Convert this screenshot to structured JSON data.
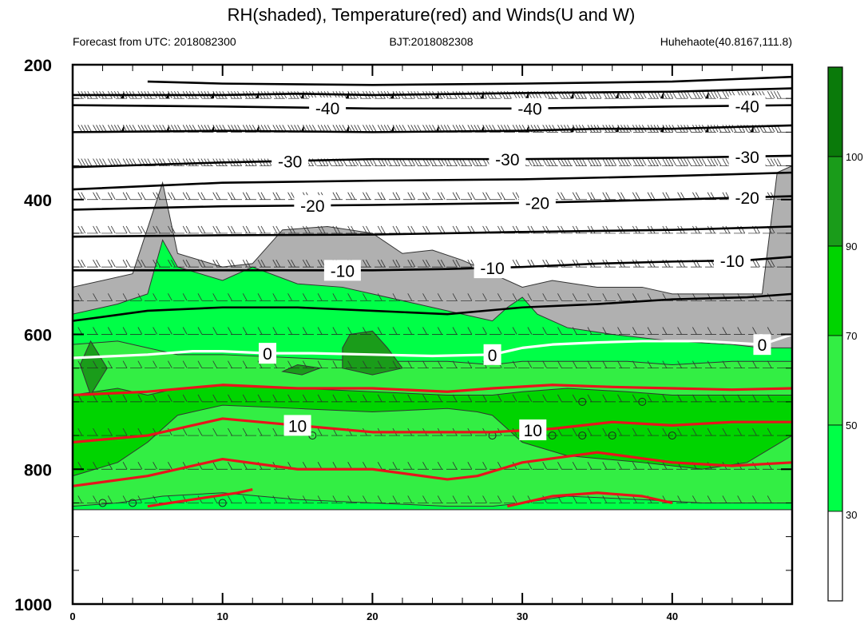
{
  "chart_data": {
    "type": "contour",
    "title": "RH(shaded), Temperature(red) and Winds(U and W)",
    "subtitle_left": "Forecast from UTC: 2018082300",
    "subtitle_center": "BJT:2018082308",
    "subtitle_right": "Huhehaote(40.8167,111.8)",
    "x_ticks": [
      0,
      10,
      20,
      30,
      40
    ],
    "xlim": [
      0,
      48
    ],
    "y_ticks": [
      200,
      400,
      600,
      800,
      1000
    ],
    "ylim": [
      200,
      1000
    ],
    "y_inverted": true,
    "wind_levels": [
      250,
      300,
      350,
      400,
      450,
      500,
      550,
      600,
      650,
      700,
      750,
      800,
      850
    ],
    "rh_colorbar": {
      "levels": [
        30,
        50,
        70,
        90,
        100
      ],
      "labels": [
        "30",
        "50",
        "70",
        "90",
        "100"
      ],
      "colors": [
        "#ffffff",
        "#b0b0b0",
        "#00ff47",
        "#33ee44",
        "#00d400",
        "#1a9c1a",
        "#0a7a0a"
      ]
    },
    "rh_regions": [
      {
        "name": "rh-30-50",
        "color": "#b0b0b0",
        "lower": [
          [
            0,
            860
          ],
          [
            48,
            860
          ]
        ],
        "upper": [
          [
            0,
            530
          ],
          [
            4,
            510
          ],
          [
            6,
            375
          ],
          [
            7,
            480
          ],
          [
            10,
            500
          ],
          [
            12,
            495
          ],
          [
            14,
            445
          ],
          [
            17,
            440
          ],
          [
            20,
            450
          ],
          [
            22,
            480
          ],
          [
            24,
            475
          ],
          [
            26,
            490
          ],
          [
            28,
            510
          ],
          [
            30,
            530
          ],
          [
            32,
            520
          ],
          [
            35,
            530
          ],
          [
            38,
            530
          ],
          [
            40,
            540
          ],
          [
            43,
            540
          ],
          [
            46,
            540
          ],
          [
            47,
            360
          ],
          [
            48,
            350
          ]
        ]
      },
      {
        "name": "rh-50-70",
        "color": "#00ff47",
        "lower": [
          [
            0,
            860
          ],
          [
            48,
            860
          ]
        ],
        "upper": [
          [
            0,
            570
          ],
          [
            3,
            555
          ],
          [
            5,
            540
          ],
          [
            6,
            460
          ],
          [
            7,
            500
          ],
          [
            10,
            520
          ],
          [
            12,
            500
          ],
          [
            15,
            525
          ],
          [
            18,
            530
          ],
          [
            20,
            540
          ],
          [
            23,
            555
          ],
          [
            25,
            565
          ],
          [
            28,
            580
          ],
          [
            29,
            560
          ],
          [
            30,
            545
          ],
          [
            31,
            570
          ],
          [
            33,
            590
          ],
          [
            36,
            600
          ],
          [
            40,
            610
          ],
          [
            44,
            615
          ],
          [
            46,
            620
          ],
          [
            48,
            620
          ]
        ]
      },
      {
        "name": "rh-70-90",
        "color": "#33ee44",
        "lower": [
          [
            0,
            855
          ],
          [
            3,
            850
          ],
          [
            6,
            840
          ],
          [
            10,
            835
          ],
          [
            15,
            845
          ],
          [
            20,
            850
          ],
          [
            25,
            855
          ],
          [
            28,
            855
          ],
          [
            30,
            850
          ],
          [
            33,
            840
          ],
          [
            38,
            845
          ],
          [
            42,
            850
          ],
          [
            48,
            850
          ]
        ],
        "upper": [
          [
            0,
            615
          ],
          [
            3,
            610
          ],
          [
            5,
            620
          ],
          [
            7,
            630
          ],
          [
            10,
            630
          ],
          [
            15,
            635
          ],
          [
            20,
            640
          ],
          [
            25,
            640
          ],
          [
            28,
            645
          ],
          [
            30,
            640
          ],
          [
            33,
            640
          ],
          [
            37,
            640
          ],
          [
            40,
            645
          ],
          [
            44,
            640
          ],
          [
            48,
            640
          ]
        ]
      },
      {
        "name": "rh-90-100",
        "color": "#00d400",
        "lower": [
          [
            0,
            810
          ],
          [
            3,
            790
          ],
          [
            5,
            760
          ],
          [
            7,
            720
          ],
          [
            10,
            705
          ],
          [
            15,
            710
          ],
          [
            20,
            715
          ],
          [
            25,
            710
          ],
          [
            27,
            715
          ],
          [
            28,
            720
          ],
          [
            30,
            760
          ],
          [
            33,
            780
          ],
          [
            38,
            790
          ],
          [
            42,
            800
          ],
          [
            45,
            790
          ],
          [
            48,
            750
          ]
        ],
        "upper": [
          [
            0,
            690
          ],
          [
            3,
            680
          ],
          [
            5,
            690
          ],
          [
            7,
            680
          ],
          [
            10,
            675
          ],
          [
            15,
            680
          ],
          [
            20,
            685
          ],
          [
            25,
            690
          ],
          [
            28,
            690
          ],
          [
            30,
            685
          ],
          [
            33,
            680
          ],
          [
            37,
            685
          ],
          [
            40,
            690
          ],
          [
            44,
            690
          ],
          [
            48,
            690
          ]
        ]
      }
    ],
    "rh_patches": [
      [
        [
          0.5,
          645
        ],
        [
          1.2,
          610
        ],
        [
          2.3,
          650
        ],
        [
          1.2,
          690
        ]
      ],
      [
        [
          18.5,
          600
        ],
        [
          20,
          595
        ],
        [
          21,
          620
        ],
        [
          22,
          650
        ],
        [
          20,
          660
        ],
        [
          18,
          650
        ],
        [
          18,
          620
        ]
      ],
      [
        [
          15,
          645
        ],
        [
          16.5,
          650
        ],
        [
          15.3,
          660
        ],
        [
          14,
          655
        ]
      ]
    ],
    "temperature_contours": [
      {
        "level": 0,
        "color": "#ffffff",
        "label": "0",
        "label_x": [
          13,
          28,
          46
        ],
        "points": [
          [
            0,
            635
          ],
          [
            5,
            630
          ],
          [
            8,
            625
          ],
          [
            10,
            625
          ],
          [
            13,
            628
          ],
          [
            16,
            628
          ],
          [
            20,
            630
          ],
          [
            24,
            632
          ],
          [
            28,
            630
          ],
          [
            30,
            620
          ],
          [
            32,
            615
          ],
          [
            35,
            612
          ],
          [
            38,
            610
          ],
          [
            42,
            610
          ],
          [
            46,
            615
          ],
          [
            48,
            600
          ]
        ]
      },
      {
        "level": 5,
        "color": "#e8141c",
        "label": "",
        "label_x": [],
        "points": [
          [
            0,
            690
          ],
          [
            5,
            685
          ],
          [
            10,
            675
          ],
          [
            15,
            680
          ],
          [
            20,
            680
          ],
          [
            25,
            685
          ],
          [
            28,
            680
          ],
          [
            32,
            675
          ],
          [
            36,
            678
          ],
          [
            40,
            680
          ],
          [
            44,
            682
          ],
          [
            48,
            680
          ]
        ]
      },
      {
        "level": 10,
        "color": "#e8141c",
        "label": "10",
        "label_x": [
          15,
          30.7
        ],
        "points": [
          [
            0,
            760
          ],
          [
            5,
            750
          ],
          [
            10,
            725
          ],
          [
            15,
            735
          ],
          [
            20,
            745
          ],
          [
            25,
            745
          ],
          [
            28,
            745
          ],
          [
            32,
            740
          ],
          [
            36,
            730
          ],
          [
            40,
            735
          ],
          [
            44,
            730
          ],
          [
            48,
            730
          ]
        ]
      },
      {
        "level": 15,
        "color": "#e8141c",
        "label": "",
        "label_x": [],
        "points": [
          [
            0,
            825
          ],
          [
            5,
            810
          ],
          [
            10,
            785
          ],
          [
            15,
            800
          ],
          [
            20,
            800
          ],
          [
            25,
            815
          ],
          [
            27,
            810
          ],
          [
            30,
            790
          ],
          [
            35,
            775
          ],
          [
            40,
            790
          ],
          [
            44,
            795
          ],
          [
            48,
            790
          ]
        ]
      },
      {
        "level": 20,
        "color": "#e8141c",
        "label": "",
        "label_x": [],
        "points": [
          [
            5,
            855
          ],
          [
            8,
            845
          ],
          [
            11,
            835
          ],
          [
            12,
            830
          ]
        ]
      },
      {
        "level": 20,
        "color": "#e8141c",
        "label": "",
        "label_x": [],
        "points": [
          [
            29,
            855
          ],
          [
            32,
            840
          ],
          [
            35,
            835
          ],
          [
            38,
            840
          ],
          [
            40,
            850
          ]
        ]
      },
      {
        "level": -5,
        "color": "#000000",
        "label": "",
        "label_x": [],
        "points": [
          [
            0,
            580
          ],
          [
            5,
            565
          ],
          [
            10,
            560
          ],
          [
            15,
            560
          ],
          [
            20,
            565
          ],
          [
            25,
            570
          ],
          [
            30,
            560
          ],
          [
            35,
            555
          ],
          [
            40,
            548
          ],
          [
            45,
            545
          ],
          [
            48,
            540
          ]
        ]
      },
      {
        "level": -10,
        "color": "#000000",
        "label": "-10",
        "label_x": [
          18,
          28,
          44
        ],
        "points": [
          [
            0,
            505
          ],
          [
            5,
            505
          ],
          [
            10,
            505
          ],
          [
            15,
            505
          ],
          [
            20,
            505
          ],
          [
            25,
            503
          ],
          [
            30,
            500
          ],
          [
            35,
            495
          ],
          [
            40,
            492
          ],
          [
            45,
            490
          ],
          [
            48,
            485
          ]
        ]
      },
      {
        "level": -15,
        "color": "#000000",
        "label": "",
        "label_x": [],
        "points": [
          [
            0,
            455
          ],
          [
            10,
            453
          ],
          [
            20,
            452
          ],
          [
            30,
            448
          ],
          [
            40,
            445
          ],
          [
            48,
            440
          ]
        ]
      },
      {
        "level": -20,
        "color": "#000000",
        "label": "-20",
        "label_x": [
          16,
          31,
          45
        ],
        "points": [
          [
            0,
            415
          ],
          [
            10,
            410
          ],
          [
            20,
            408
          ],
          [
            30,
            405
          ],
          [
            40,
            400
          ],
          [
            48,
            395
          ]
        ]
      },
      {
        "level": -25,
        "color": "#000000",
        "label": "",
        "label_x": [],
        "points": [
          [
            0,
            385
          ],
          [
            10,
            375
          ],
          [
            20,
            372
          ],
          [
            30,
            370
          ],
          [
            40,
            365
          ],
          [
            48,
            360
          ]
        ]
      },
      {
        "level": -30,
        "color": "#000000",
        "label": "-30",
        "label_x": [
          14.5,
          29,
          45
        ],
        "points": [
          [
            0,
            352
          ],
          [
            10,
            345
          ],
          [
            20,
            340
          ],
          [
            30,
            340
          ],
          [
            40,
            338
          ],
          [
            48,
            335
          ]
        ]
      },
      {
        "level": -35,
        "color": "#000000",
        "label": "",
        "label_x": [],
        "points": [
          [
            0,
            300
          ],
          [
            10,
            298
          ],
          [
            20,
            300
          ],
          [
            30,
            298
          ],
          [
            35,
            295
          ],
          [
            40,
            295
          ],
          [
            48,
            290
          ]
        ]
      },
      {
        "level": -40,
        "color": "#000000",
        "label": "-40",
        "label_x": [
          17,
          30.5,
          45
        ],
        "points": [
          [
            0,
            260
          ],
          [
            10,
            262
          ],
          [
            20,
            265
          ],
          [
            30,
            265
          ],
          [
            40,
            262
          ],
          [
            48,
            260
          ]
        ]
      },
      {
        "level": -45,
        "color": "#000000",
        "label": "",
        "label_x": [],
        "points": [
          [
            0,
            245
          ],
          [
            10,
            245
          ],
          [
            15,
            243
          ],
          [
            20,
            245
          ],
          [
            30,
            242
          ],
          [
            40,
            240
          ],
          [
            48,
            235
          ]
        ]
      },
      {
        "level": -50,
        "color": "#000000",
        "label": "",
        "label_x": [],
        "points": [
          [
            5,
            225
          ],
          [
            10,
            228
          ],
          [
            20,
            230
          ],
          [
            30,
            228
          ],
          [
            40,
            225
          ],
          [
            48,
            218
          ]
        ]
      }
    ],
    "calm_marker_points": [
      [
        2,
        850
      ],
      [
        4,
        850
      ],
      [
        10,
        850
      ],
      [
        16,
        750
      ],
      [
        28,
        750
      ],
      [
        32,
        750
      ],
      [
        34,
        750
      ],
      [
        34,
        700
      ],
      [
        36,
        750
      ],
      [
        38,
        700
      ],
      [
        40,
        750
      ]
    ]
  }
}
